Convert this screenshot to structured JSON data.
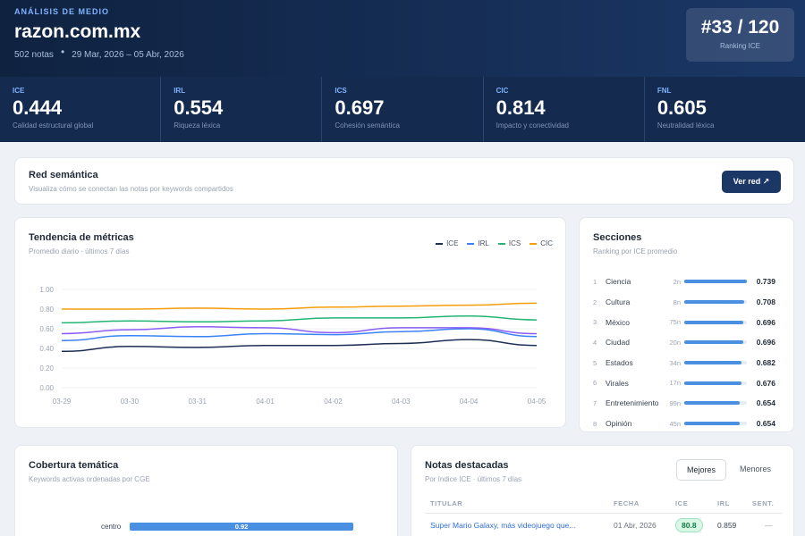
{
  "hero": {
    "eyebrow": "ANÁLISIS DE MEDIO",
    "site": "razon.com.mx",
    "notes_count": "502 notas",
    "separator": "•",
    "date_range": "29 Mar, 2026 – 05 Abr, 2026",
    "rank_value": "#33 / 120",
    "rank_label": "Ranking ICE"
  },
  "metrics": [
    {
      "code": "ICE",
      "value": "0.444",
      "desc": "Calidad estructural global"
    },
    {
      "code": "IRL",
      "value": "0.554",
      "desc": "Riqueza léxica"
    },
    {
      "code": "ICS",
      "value": "0.697",
      "desc": "Cohesión semántica"
    },
    {
      "code": "CIC",
      "value": "0.814",
      "desc": "Impacto y conectividad"
    },
    {
      "code": "FNL",
      "value": "0.605",
      "desc": "Neutralidad léxica"
    }
  ],
  "red": {
    "title": "Red semántica",
    "subtitle": "Visualiza cómo se conectan las notas por keywords compartidos",
    "button": "Ver red ↗"
  },
  "trend": {
    "title": "Tendencia de métricas",
    "subtitle": "Promedio diario · últimos 7 días"
  },
  "chart_data": {
    "type": "line",
    "x": [
      "03-29",
      "03-30",
      "03-31",
      "04-01",
      "04-02",
      "04-03",
      "04-04",
      "04-05"
    ],
    "ylim": [
      0,
      1
    ],
    "yticks": [
      "0.00",
      "0.20",
      "0.40",
      "0.60",
      "0.80",
      "1.00"
    ],
    "grid": true,
    "legend_position": "top-right",
    "series": [
      {
        "name": "ICE",
        "color": "#1e2f55",
        "values": [
          0.37,
          0.42,
          0.41,
          0.43,
          0.43,
          0.45,
          0.49,
          0.43
        ]
      },
      {
        "name": "IRL",
        "color": "#3b82f6",
        "values": [
          0.48,
          0.53,
          0.52,
          0.55,
          0.54,
          0.57,
          0.6,
          0.52
        ]
      },
      {
        "name": "ICS",
        "color": "#22b573",
        "values": [
          0.66,
          0.68,
          0.67,
          0.68,
          0.71,
          0.71,
          0.73,
          0.69
        ]
      },
      {
        "name": "CIC",
        "color": "#f59e0b",
        "values": [
          0.8,
          0.8,
          0.81,
          0.8,
          0.82,
          0.83,
          0.84,
          0.86
        ]
      },
      {
        "name": "",
        "color": "#8b5cf6",
        "values": [
          0.55,
          0.59,
          0.62,
          0.61,
          0.56,
          0.61,
          0.61,
          0.55
        ]
      }
    ]
  },
  "secciones": {
    "title": "Secciones",
    "subtitle": "Ranking por ICE promedio",
    "items": [
      {
        "idx": "1",
        "name": "Ciencia",
        "n": "2n",
        "score": "0.739",
        "fraction": 1.0
      },
      {
        "idx": "2",
        "name": "Cultura",
        "n": "8n",
        "score": "0.708",
        "fraction": 0.96
      },
      {
        "idx": "3",
        "name": "México",
        "n": "75n",
        "score": "0.696",
        "fraction": 0.94
      },
      {
        "idx": "4",
        "name": "Ciudad",
        "n": "20n",
        "score": "0.696",
        "fraction": 0.94
      },
      {
        "idx": "5",
        "name": "Estados",
        "n": "34n",
        "score": "0.682",
        "fraction": 0.92
      },
      {
        "idx": "6",
        "name": "Virales",
        "n": "17n",
        "score": "0.676",
        "fraction": 0.91
      },
      {
        "idx": "7",
        "name": "Entretenimiento",
        "n": "99n",
        "score": "0.654",
        "fraction": 0.88
      },
      {
        "idx": "8",
        "name": "Opinión",
        "n": "45n",
        "score": "0.654",
        "fraction": 0.88
      }
    ]
  },
  "cobertura": {
    "title": "Cobertura temática",
    "subtitle": "Keywords activas ordenadas por CGE",
    "keyword": "centro",
    "value": "0.92"
  },
  "notas": {
    "title": "Notas destacadas",
    "subtitle": "Por índice ICE · últimos 7 días",
    "tab_best": "Mejores",
    "tab_worst": "Menores",
    "headers": {
      "titular": "TITULAR",
      "fecha": "FECHA",
      "ice": "ICE",
      "irl": "IRL",
      "sent": "SENT."
    },
    "row": {
      "titular": "Super Mario Galaxy, más videojuego que...",
      "fecha": "01 Abr, 2026",
      "ice": "80.8",
      "irl": "0.859",
      "sent": "—"
    }
  }
}
